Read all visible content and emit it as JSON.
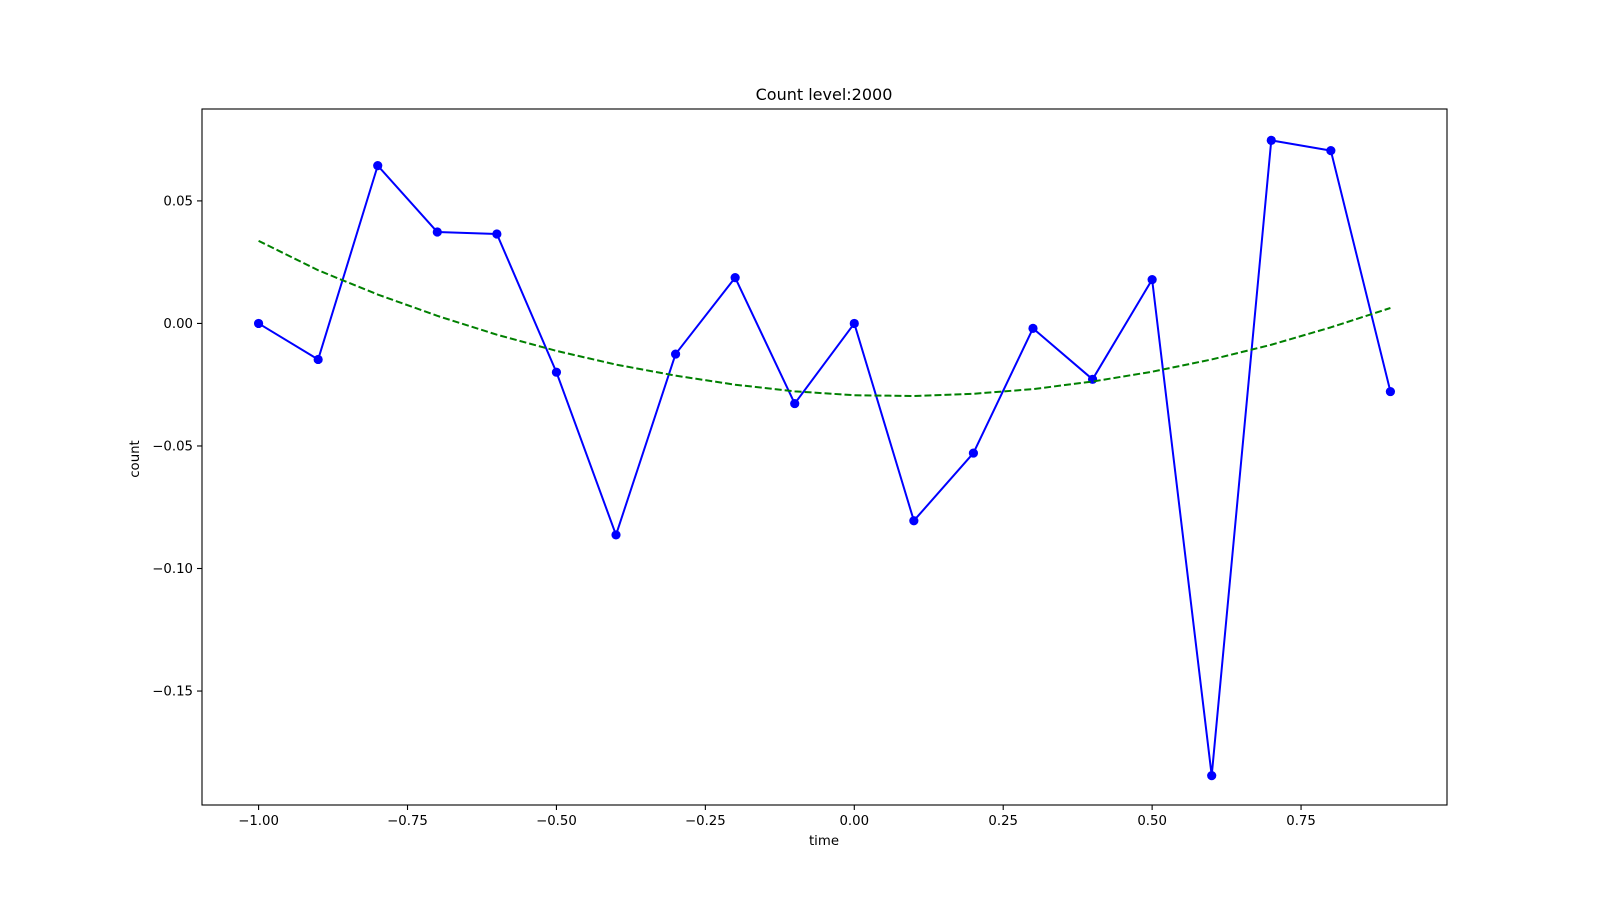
{
  "chart_data": {
    "type": "line",
    "title": "Count level:2000",
    "xlabel": "time",
    "ylabel": "count",
    "xlim": [
      -1.095,
      0.995
    ],
    "ylim": [
      -0.1965,
      0.0875
    ],
    "grid": false,
    "xticks": [
      {
        "value": -1.0,
        "label": "−1.00"
      },
      {
        "value": -0.75,
        "label": "−0.75"
      },
      {
        "value": -0.5,
        "label": "−0.50"
      },
      {
        "value": -0.25,
        "label": "−0.25"
      },
      {
        "value": 0.0,
        "label": "0.00"
      },
      {
        "value": 0.25,
        "label": "0.25"
      },
      {
        "value": 0.5,
        "label": "0.50"
      },
      {
        "value": 0.75,
        "label": "0.75"
      }
    ],
    "yticks": [
      {
        "value": 0.05,
        "label": "0.05"
      },
      {
        "value": 0.0,
        "label": "0.00"
      },
      {
        "value": -0.05,
        "label": "−0.05"
      },
      {
        "value": -0.1,
        "label": "−0.10"
      },
      {
        "value": -0.15,
        "label": "−0.15"
      }
    ],
    "series": [
      {
        "style": "solid-markers",
        "color": "#0000ff",
        "x": [
          -1.0,
          -0.9,
          -0.8,
          -0.7,
          -0.6,
          -0.5,
          -0.4,
          -0.3,
          -0.2,
          -0.1,
          0.0,
          0.1,
          0.2,
          0.3,
          0.4,
          0.5,
          0.6,
          0.7,
          0.8,
          0.9
        ],
        "y": [
          0.0,
          -0.0147,
          0.0644,
          0.0373,
          0.0365,
          -0.0199,
          -0.0863,
          -0.0125,
          0.0187,
          -0.0327,
          0.0,
          -0.0805,
          -0.0529,
          -0.002,
          -0.0228,
          0.0179,
          -0.1845,
          0.0747,
          0.0705,
          -0.0278
        ]
      },
      {
        "style": "dashed",
        "color": "#008000",
        "x": [
          -1.0,
          -0.9,
          -0.8,
          -0.7,
          -0.6,
          -0.5,
          -0.4,
          -0.3,
          -0.2,
          -0.1,
          0.0,
          0.1,
          0.2,
          0.3,
          0.4,
          0.5,
          0.6,
          0.7,
          0.8,
          0.9
        ],
        "y": [
          0.0337,
          0.0217,
          0.0118,
          0.0031,
          -0.0046,
          -0.0112,
          -0.0168,
          -0.0213,
          -0.025,
          -0.0277,
          -0.0293,
          -0.0296,
          -0.0287,
          -0.0268,
          -0.0237,
          -0.0197,
          -0.0147,
          -0.0087,
          -0.0016,
          0.0063
        ]
      }
    ]
  }
}
